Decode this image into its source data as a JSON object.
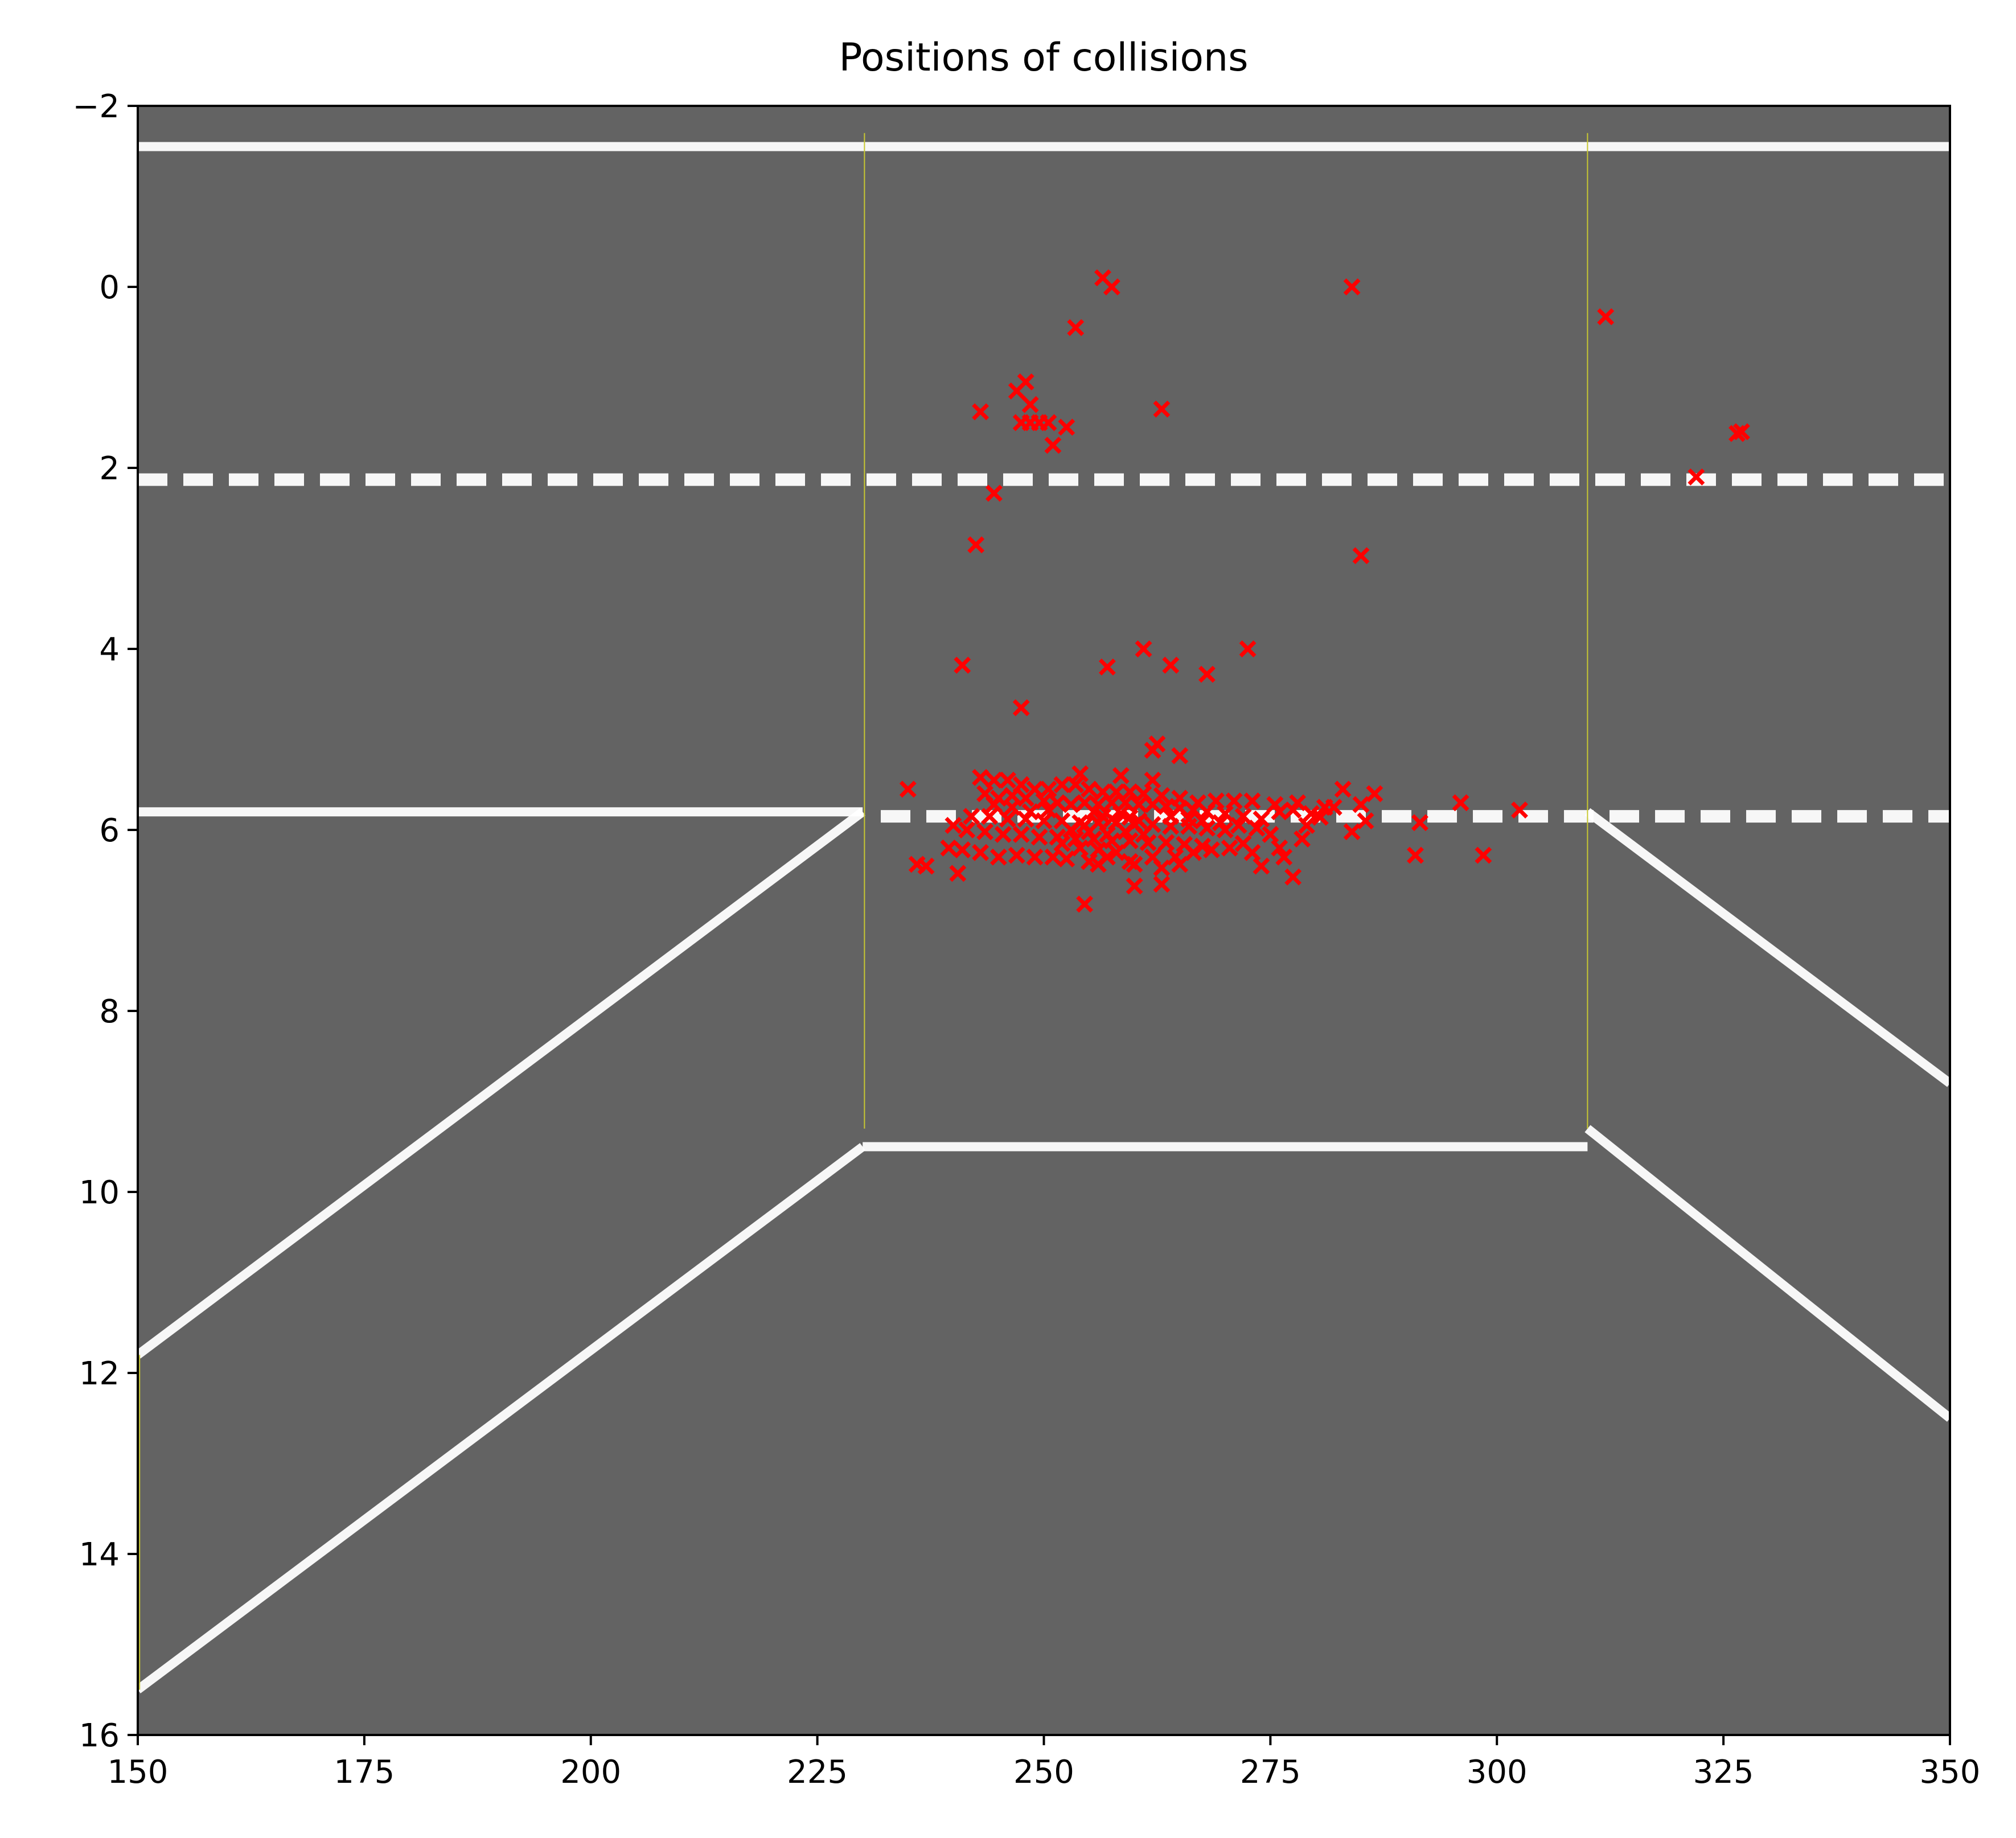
{
  "chart_data": {
    "type": "scatter",
    "title": "Positions of collisions",
    "xlabel": "",
    "ylabel": "",
    "xlim": [
      150,
      350
    ],
    "ylim": [
      16,
      -2
    ],
    "y_axis_inverted": true,
    "grid": false,
    "legend": "none",
    "x_ticks": [
      150,
      175,
      200,
      225,
      250,
      275,
      300,
      325,
      350
    ],
    "y_ticks": [
      -2,
      0,
      2,
      4,
      6,
      8,
      10,
      12,
      14,
      16
    ],
    "x_tick_labels": [
      "150",
      "175",
      "200",
      "225",
      "250",
      "275",
      "300",
      "325",
      "350"
    ],
    "y_tick_labels": [
      "−2",
      "0",
      "2",
      "4",
      "6",
      "8",
      "10",
      "12",
      "14",
      "16"
    ],
    "colors": {
      "background": "#636363",
      "road_line": "#ffffff",
      "marker": "#ff0000",
      "guide_line": "#c8c832"
    },
    "background_image": {
      "solid_lines": [
        {
          "name": "top-boundary",
          "points": [
            [
              150,
              -1.55
            ],
            [
              350,
              -1.55
            ]
          ]
        },
        {
          "name": "left-lane-edge",
          "points": [
            [
              150,
              5.8
            ],
            [
              230,
              5.8
            ]
          ]
        },
        {
          "name": "inner-road-edge",
          "points": [
            [
              230,
              9.5
            ],
            [
              310,
              9.5
            ]
          ]
        },
        {
          "name": "left-ramp-upper",
          "points": [
            [
              150,
              11.8
            ],
            [
              230,
              5.8
            ]
          ]
        },
        {
          "name": "left-ramp-lower",
          "points": [
            [
              150,
              15.5
            ],
            [
              230,
              9.5
            ]
          ]
        },
        {
          "name": "right-ramp-upper",
          "points": [
            [
              310,
              5.8
            ],
            [
              350,
              8.8
            ]
          ]
        },
        {
          "name": "right-ramp-lower",
          "points": [
            [
              310,
              9.3
            ],
            [
              350,
              12.5
            ]
          ]
        }
      ],
      "dashed_lines": [
        {
          "name": "dashed-lane-upper",
          "points": [
            [
              150,
              2.13
            ],
            [
              350,
              2.13
            ]
          ]
        },
        {
          "name": "dashed-lane-lower",
          "points": [
            [
              232,
              5.85
            ],
            [
              350,
              5.85
            ]
          ]
        }
      ],
      "guide_lines": [
        {
          "name": "guide-left",
          "points": [
            [
              230.2,
              -1.7
            ],
            [
              230.2,
              9.3
            ]
          ]
        },
        {
          "name": "guide-right",
          "points": [
            [
              310,
              -1.7
            ],
            [
              310,
              9.3
            ]
          ]
        },
        {
          "name": "guide-edge",
          "points": [
            [
              150.2,
              11.8
            ],
            [
              150.2,
              15.5
            ]
          ]
        }
      ]
    },
    "series": [
      {
        "marker": "x",
        "color": "#ff0000",
        "points": [
          [
            256.5,
            -0.1
          ],
          [
            257.5,
            0.0
          ],
          [
            284.0,
            0.0
          ],
          [
            312.0,
            0.33
          ],
          [
            253.5,
            0.45
          ],
          [
            248.0,
            1.05
          ],
          [
            247.0,
            1.15
          ],
          [
            248.5,
            1.3
          ],
          [
            243.0,
            1.38
          ],
          [
            263.0,
            1.35
          ],
          [
            247.5,
            1.5
          ],
          [
            248.5,
            1.5
          ],
          [
            249.5,
            1.5
          ],
          [
            250.5,
            1.5
          ],
          [
            252.5,
            1.55
          ],
          [
            251.0,
            1.75
          ],
          [
            327.0,
            1.6
          ],
          [
            326.5,
            1.62
          ],
          [
            322.0,
            2.1
          ],
          [
            244.5,
            2.28
          ],
          [
            242.5,
            2.85
          ],
          [
            285.0,
            2.97
          ],
          [
            261.0,
            4.0
          ],
          [
            272.5,
            4.0
          ],
          [
            241.0,
            4.18
          ],
          [
            257.0,
            4.2
          ],
          [
            264.0,
            4.18
          ],
          [
            268.0,
            4.28
          ],
          [
            247.5,
            4.65
          ],
          [
            262.5,
            5.05
          ],
          [
            262.0,
            5.12
          ],
          [
            265.0,
            5.18
          ],
          [
            235.0,
            5.55
          ],
          [
            283.0,
            5.55
          ],
          [
            286.5,
            5.6
          ],
          [
            296.0,
            5.7
          ],
          [
            302.5,
            5.78
          ],
          [
            285.0,
            5.72
          ],
          [
            281.0,
            5.75
          ],
          [
            278.0,
            5.7
          ],
          [
            275.5,
            5.72
          ],
          [
            273.0,
            5.68
          ],
          [
            271.0,
            5.68
          ],
          [
            269.0,
            5.68
          ],
          [
            267.0,
            5.7
          ],
          [
            265.0,
            5.65
          ],
          [
            263.0,
            5.62
          ],
          [
            261.0,
            5.6
          ],
          [
            259.5,
            5.58
          ],
          [
            258.0,
            5.58
          ],
          [
            256.5,
            5.58
          ],
          [
            255.0,
            5.55
          ],
          [
            253.5,
            5.5
          ],
          [
            252.0,
            5.5
          ],
          [
            250.5,
            5.55
          ],
          [
            249.0,
            5.55
          ],
          [
            247.5,
            5.5
          ],
          [
            246.0,
            5.45
          ],
          [
            244.5,
            5.45
          ],
          [
            243.0,
            5.42
          ],
          [
            254.0,
            5.38
          ],
          [
            258.5,
            5.4
          ],
          [
            262.0,
            5.45
          ],
          [
            243.5,
            5.6
          ],
          [
            245.0,
            5.65
          ],
          [
            246.5,
            5.62
          ],
          [
            248.0,
            5.65
          ],
          [
            250.0,
            5.68
          ],
          [
            251.5,
            5.7
          ],
          [
            253.0,
            5.72
          ],
          [
            254.5,
            5.7
          ],
          [
            256.0,
            5.72
          ],
          [
            257.5,
            5.7
          ],
          [
            259.0,
            5.7
          ],
          [
            260.5,
            5.72
          ],
          [
            262.0,
            5.72
          ],
          [
            263.5,
            5.74
          ],
          [
            265.0,
            5.76
          ],
          [
            266.5,
            5.78
          ],
          [
            268.0,
            5.8
          ],
          [
            270.0,
            5.82
          ],
          [
            272.0,
            5.85
          ],
          [
            274.0,
            5.88
          ],
          [
            276.0,
            5.8
          ],
          [
            277.5,
            5.78
          ],
          [
            279.5,
            5.82
          ],
          [
            280.5,
            5.86
          ],
          [
            242.0,
            5.85
          ],
          [
            244.0,
            5.85
          ],
          [
            246.0,
            5.88
          ],
          [
            248.0,
            5.88
          ],
          [
            250.0,
            5.9
          ],
          [
            252.0,
            5.9
          ],
          [
            254.0,
            5.92
          ],
          [
            256.0,
            5.92
          ],
          [
            258.0,
            5.92
          ],
          [
            260.0,
            5.94
          ],
          [
            262.0,
            5.94
          ],
          [
            264.0,
            5.96
          ],
          [
            266.0,
            5.96
          ],
          [
            268.0,
            5.98
          ],
          [
            270.0,
            6.0
          ],
          [
            240.0,
            5.95
          ],
          [
            241.5,
            6.0
          ],
          [
            243.5,
            6.02
          ],
          [
            245.5,
            6.05
          ],
          [
            247.5,
            6.05
          ],
          [
            249.5,
            6.08
          ],
          [
            251.5,
            6.08
          ],
          [
            253.5,
            6.1
          ],
          [
            255.5,
            6.1
          ],
          [
            257.5,
            6.12
          ],
          [
            259.5,
            6.12
          ],
          [
            261.5,
            6.14
          ],
          [
            263.5,
            6.14
          ],
          [
            265.5,
            6.16
          ],
          [
            267.5,
            6.18
          ],
          [
            272.0,
            6.15
          ],
          [
            276.0,
            6.2
          ],
          [
            278.5,
            6.1
          ],
          [
            284.0,
            6.02
          ],
          [
            285.5,
            5.9
          ],
          [
            291.5,
            5.92
          ],
          [
            239.5,
            6.2
          ],
          [
            241.0,
            6.22
          ],
          [
            243.0,
            6.25
          ],
          [
            245.0,
            6.3
          ],
          [
            247.0,
            6.28
          ],
          [
            249.0,
            6.3
          ],
          [
            251.0,
            6.3
          ],
          [
            252.5,
            6.32
          ],
          [
            255.0,
            6.35
          ],
          [
            257.0,
            6.3
          ],
          [
            259.5,
            6.35
          ],
          [
            262.0,
            6.3
          ],
          [
            264.5,
            6.3
          ],
          [
            266.5,
            6.25
          ],
          [
            268.5,
            6.22
          ],
          [
            270.5,
            6.2
          ],
          [
            273.0,
            6.25
          ],
          [
            276.5,
            6.3
          ],
          [
            291.0,
            6.28
          ],
          [
            298.5,
            6.28
          ],
          [
            236.0,
            6.38
          ],
          [
            237.0,
            6.4
          ],
          [
            240.5,
            6.48
          ],
          [
            256.0,
            6.38
          ],
          [
            260.0,
            6.38
          ],
          [
            263.0,
            6.42
          ],
          [
            265.0,
            6.38
          ],
          [
            274.0,
            6.4
          ],
          [
            277.5,
            6.52
          ],
          [
            260.0,
            6.62
          ],
          [
            263.0,
            6.6
          ],
          [
            254.5,
            6.82
          ],
          [
            255.5,
            5.8
          ],
          [
            256.5,
            5.85
          ],
          [
            257.5,
            5.88
          ],
          [
            258.5,
            5.82
          ],
          [
            259.5,
            5.86
          ],
          [
            260.5,
            5.9
          ],
          [
            254.5,
            5.95
          ],
          [
            253.0,
            6.0
          ],
          [
            255.0,
            6.02
          ],
          [
            257.0,
            6.05
          ],
          [
            259.0,
            6.02
          ],
          [
            261.0,
            6.05
          ],
          [
            252.0,
            6.15
          ],
          [
            254.0,
            6.2
          ],
          [
            256.0,
            6.22
          ],
          [
            258.0,
            6.25
          ],
          [
            250.5,
            5.78
          ],
          [
            248.5,
            5.8
          ],
          [
            246.5,
            5.75
          ],
          [
            244.5,
            5.72
          ],
          [
            267.5,
            5.9
          ],
          [
            269.5,
            5.92
          ],
          [
            271.5,
            5.95
          ],
          [
            273.5,
            5.98
          ],
          [
            275.0,
            6.05
          ],
          [
            279.0,
            5.95
          ],
          [
            282.0,
            5.75
          ],
          [
            264.0,
            5.85
          ],
          [
            266.0,
            5.88
          ]
        ]
      }
    ]
  }
}
